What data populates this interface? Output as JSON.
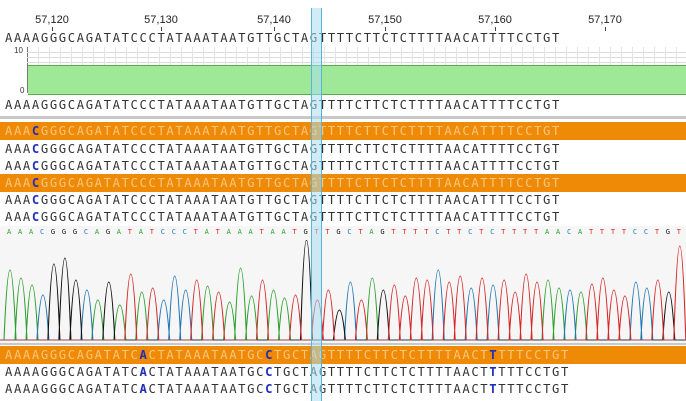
{
  "ruler": {
    "labels": [
      "57,120",
      "57,130",
      "57,140",
      "57,150",
      "57,160",
      "57,170"
    ]
  },
  "consensus": {
    "sequence": "AAAAGGGCAGATATCCCTATAAATAATGTTGCTAGTTTTCTTCTCTTTTAACATTTTCCTGT",
    "y_max": "10",
    "y_min": "0",
    "coverage_color": "#9fe897"
  },
  "reads": {
    "before_prefix": "AAA",
    "highlight_base": "C",
    "before_suffix": "GGGCAGATATCCCTATAAATAATGTTGCTAGTTTTCTTCTCTTTTAACATTTTCCTGT",
    "chromatogram_calls": "AAACGGGCAGATATCCCTATAAATAATGTTGCTAGTTTTCTTCTCTTTTAACATTTTCCTGT",
    "after_part1": "AAAAGGGCAGATATC",
    "after_hl1": "A",
    "after_part2": "CTATAAATAATGC",
    "after_hl2": "C",
    "after_part3": "TGCTAGTTTTCTTCTCTTTTAACT",
    "after_hl3": "T",
    "after_part4": "TTTCCTGT"
  },
  "colors": {
    "track_orange": "#ee8a06",
    "highlight_blue": "#1f2fb8",
    "cursor": "#aadcf0",
    "trace_A": "#2ca02c",
    "trace_C": "#1f77b4",
    "trace_G": "#111111",
    "trace_T": "#d62728"
  }
}
